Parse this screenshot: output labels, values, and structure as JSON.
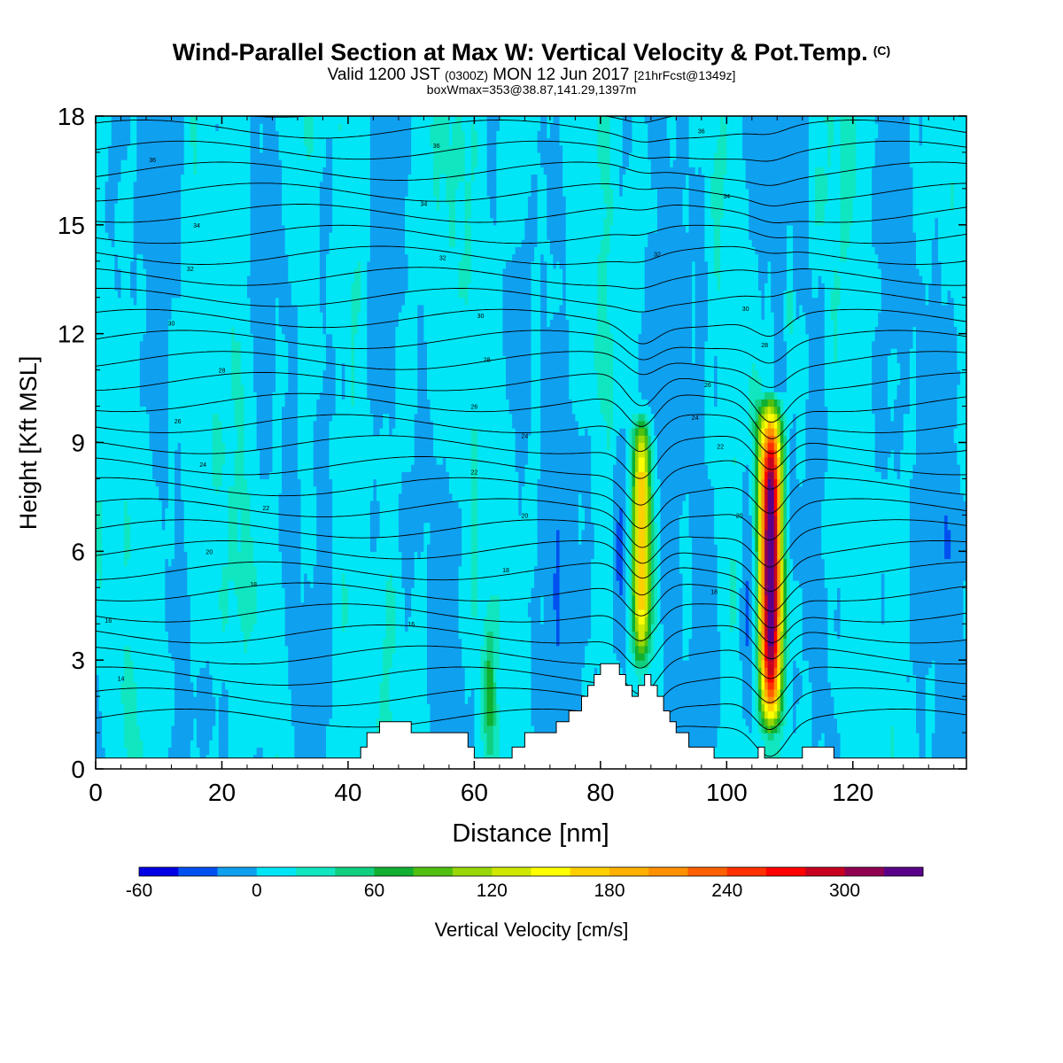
{
  "header": {
    "title": "Wind-Parallel Section at Max W: Vertical Velocity & Pot.Temp.",
    "copyright": "(C)",
    "valid_prefix": "Valid 1200 JST",
    "valid_zulu": "(0300Z)",
    "valid_date": "MON 12 Jun 2017",
    "forecast": "[21hrFcst@1349z]",
    "box_info": "boxWmax=353@38.87,141.29,1397m"
  },
  "chart_data": {
    "type": "heatmap",
    "xlabel": "Distance [nm]",
    "ylabel": "Height [Kft MSL]",
    "xlim": [
      0,
      138
    ],
    "ylim": [
      0,
      18
    ],
    "xticks": [
      0,
      20,
      40,
      60,
      80,
      100,
      120
    ],
    "yticks": [
      0,
      3,
      6,
      9,
      12,
      15,
      18
    ],
    "colorbar": {
      "label": "Vertical Velocity [cm/s]",
      "tick_values": [
        -60,
        0,
        60,
        120,
        180,
        240,
        300
      ],
      "levels": [
        -60,
        -40,
        -20,
        0,
        20,
        40,
        60,
        80,
        100,
        120,
        140,
        160,
        180,
        200,
        220,
        240,
        260,
        280,
        300,
        320,
        340
      ],
      "colors": [
        "#0000e6",
        "#0050f0",
        "#10a0f0",
        "#00e6f6",
        "#10e6c0",
        "#10d080",
        "#10b030",
        "#50c010",
        "#98d808",
        "#d0e800",
        "#ffff00",
        "#ffd000",
        "#ffb000",
        "#ff9000",
        "#ff6000",
        "#ff3000",
        "#ff0000",
        "#c80020",
        "#900050",
        "#5a0088"
      ]
    },
    "updraft_cores": [
      {
        "x": 86.5,
        "z_bottom": 2.6,
        "z_top": 10.0,
        "w_max": 180
      },
      {
        "x": 107.0,
        "z_bottom": 0.8,
        "z_top": 10.5,
        "w_max": 353
      }
    ],
    "terrain": [
      [
        0,
        0.3
      ],
      [
        40.5,
        0.3
      ],
      [
        42,
        0.6
      ],
      [
        43,
        1.0
      ],
      [
        45,
        1.3
      ],
      [
        49,
        1.3
      ],
      [
        50,
        1.0
      ],
      [
        58,
        1.0
      ],
      [
        59,
        0.6
      ],
      [
        60,
        0.3
      ],
      [
        65,
        0.3
      ],
      [
        66,
        0.6
      ],
      [
        68,
        1.0
      ],
      [
        72,
        1.0
      ],
      [
        73,
        1.3
      ],
      [
        75,
        1.6
      ],
      [
        77,
        2.0
      ],
      [
        78,
        2.3
      ],
      [
        79,
        2.6
      ],
      [
        80,
        2.9
      ],
      [
        82,
        2.9
      ],
      [
        83,
        2.6
      ],
      [
        84,
        2.3
      ],
      [
        85,
        2.0
      ],
      [
        86,
        2.3
      ],
      [
        87,
        2.6
      ],
      [
        88,
        2.3
      ],
      [
        89,
        2.0
      ],
      [
        90,
        1.6
      ],
      [
        91,
        1.3
      ],
      [
        92,
        1.0
      ],
      [
        94,
        0.6
      ],
      [
        97,
        0.6
      ],
      [
        98,
        0.3
      ],
      [
        104,
        0.3
      ],
      [
        105,
        0.6
      ],
      [
        106,
        0.3
      ],
      [
        111,
        0.3
      ],
      [
        112,
        0.6
      ],
      [
        116,
        0.6
      ],
      [
        117,
        0.3
      ],
      [
        138,
        0.3
      ]
    ],
    "isentrope_labels": [
      {
        "x": 9,
        "z": 16.8,
        "text": "36"
      },
      {
        "x": 16,
        "z": 15.0,
        "text": "34"
      },
      {
        "x": 15,
        "z": 13.8,
        "text": "32"
      },
      {
        "x": 12,
        "z": 12.3,
        "text": "30"
      },
      {
        "x": 20,
        "z": 11.0,
        "text": "28"
      },
      {
        "x": 13,
        "z": 9.6,
        "text": "26"
      },
      {
        "x": 17,
        "z": 8.4,
        "text": "24"
      },
      {
        "x": 27,
        "z": 7.2,
        "text": "22"
      },
      {
        "x": 18,
        "z": 6.0,
        "text": "20"
      },
      {
        "x": 25,
        "z": 5.1,
        "text": "18"
      },
      {
        "x": 2,
        "z": 4.1,
        "text": "16"
      },
      {
        "x": 4,
        "z": 2.5,
        "text": "14"
      },
      {
        "x": 54,
        "z": 17.2,
        "text": "36"
      },
      {
        "x": 52,
        "z": 15.6,
        "text": "34"
      },
      {
        "x": 55,
        "z": 14.1,
        "text": "32"
      },
      {
        "x": 61,
        "z": 12.5,
        "text": "30"
      },
      {
        "x": 62,
        "z": 11.3,
        "text": "28"
      },
      {
        "x": 60,
        "z": 10.0,
        "text": "26"
      },
      {
        "x": 68,
        "z": 9.2,
        "text": "24"
      },
      {
        "x": 60,
        "z": 8.2,
        "text": "22"
      },
      {
        "x": 68,
        "z": 7.0,
        "text": "20"
      },
      {
        "x": 65,
        "z": 5.5,
        "text": "18"
      },
      {
        "x": 50,
        "z": 4.0,
        "text": "16"
      },
      {
        "x": 96,
        "z": 17.6,
        "text": "36"
      },
      {
        "x": 100,
        "z": 15.8,
        "text": "34"
      },
      {
        "x": 89,
        "z": 14.2,
        "text": "32"
      },
      {
        "x": 103,
        "z": 12.7,
        "text": "30"
      },
      {
        "x": 106,
        "z": 11.7,
        "text": "28"
      },
      {
        "x": 97,
        "z": 10.6,
        "text": "26"
      },
      {
        "x": 95,
        "z": 9.7,
        "text": "24"
      },
      {
        "x": 99,
        "z": 8.9,
        "text": "22"
      },
      {
        "x": 102,
        "z": 7.0,
        "text": "20"
      },
      {
        "x": 98,
        "z": 4.9,
        "text": "18"
      }
    ]
  }
}
